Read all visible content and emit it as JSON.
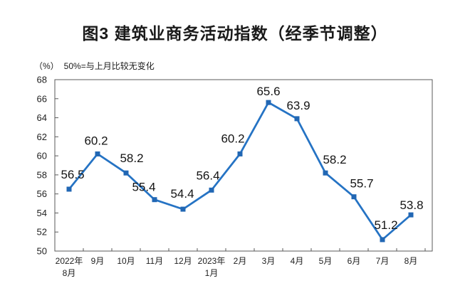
{
  "window": {
    "background": "#ffffff"
  },
  "colors": {
    "line": "#2573C4",
    "marker": "#2167B4",
    "axis": "#5a5a5a",
    "tick_label": "#1f1f1f",
    "data_label": "#141414"
  },
  "chart_data": {
    "type": "line",
    "title": "图3 建筑业商务活动指数（经季节调整）",
    "unit_label": "（%）",
    "note": "50%=与上月比较无变化",
    "categories": [
      "2022年\n8月",
      "9月",
      "10月",
      "11月",
      "12月",
      "2023年\n1月",
      "2月",
      "3月",
      "4月",
      "5月",
      "6月",
      "7月",
      "8月"
    ],
    "values": [
      56.5,
      60.2,
      58.2,
      55.4,
      54.4,
      56.4,
      60.2,
      65.6,
      63.9,
      58.2,
      55.7,
      51.2,
      53.8
    ],
    "data_labels": [
      "56.5",
      "60.2",
      "58.2",
      "55.4",
      "54.4",
      "56.4",
      "60.2",
      "65.6",
      "63.9",
      "58.2",
      "55.7",
      "51.2",
      "53.8"
    ],
    "ylim": [
      50,
      68
    ],
    "ytick_step": 2,
    "yticks": [
      "50",
      "52",
      "54",
      "56",
      "58",
      "60",
      "62",
      "64",
      "66",
      "68"
    ],
    "grid": false,
    "legend": "none",
    "marker": "square",
    "show_data_labels": true
  }
}
